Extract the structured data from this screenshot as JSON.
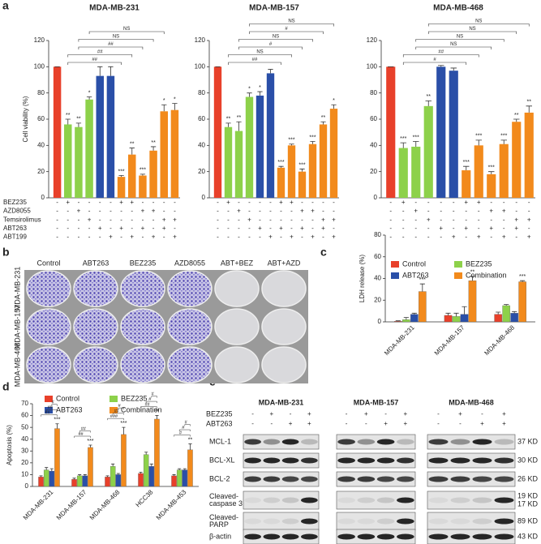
{
  "panel_labels": [
    "a",
    "b",
    "c",
    "d",
    "e"
  ],
  "treatments": {
    "rows": [
      "BEZ235",
      "AZD8055",
      "Temsirolimus",
      "ABT263",
      "ABT199"
    ],
    "signs": [
      [
        "-",
        "+",
        "-",
        "-",
        "-",
        "-",
        "+",
        "+",
        "-",
        "-",
        "-",
        "-"
      ],
      [
        "-",
        "-",
        "+",
        "-",
        "-",
        "-",
        "-",
        "-",
        "+",
        "+",
        "-",
        "-"
      ],
      [
        "-",
        "-",
        "-",
        "+",
        "-",
        "-",
        "-",
        "-",
        "-",
        "-",
        "+",
        "+"
      ],
      [
        "-",
        "-",
        "-",
        "-",
        "+",
        "-",
        "+",
        "-",
        "+",
        "-",
        "+",
        "-"
      ],
      [
        "-",
        "-",
        "-",
        "-",
        "-",
        "+",
        "-",
        "+",
        "-",
        "+",
        "-",
        "+"
      ]
    ]
  },
  "chart_data": [
    {
      "type": "bar",
      "title": "MDA-MB-231",
      "y_label": "Cell viability (%)",
      "values": [
        100,
        56,
        54,
        75,
        93,
        93,
        16,
        33,
        17,
        36,
        66,
        67
      ],
      "errors": [
        0,
        4,
        3,
        2,
        7,
        7,
        1,
        5,
        1,
        3,
        5,
        5
      ],
      "colors": [
        "#e8402a",
        "#8dd14a",
        "#8dd14a",
        "#8dd14a",
        "#2a4fa8",
        "#2a4fa8",
        "#f28a1c",
        "#f28a1c",
        "#f28a1c",
        "#f28a1c",
        "#f28a1c",
        "#f28a1c"
      ],
      "significance": [
        null,
        "**",
        "**",
        "*",
        null,
        null,
        "***",
        "**",
        "***",
        "**",
        "*",
        "*"
      ],
      "brackets": [
        "##",
        "##",
        "##",
        "NS",
        "NS"
      ],
      "ylim": [
        0,
        120
      ],
      "yticks": [
        0,
        20,
        40,
        60,
        80,
        100,
        120
      ]
    },
    {
      "type": "bar",
      "title": "MDA-MB-157",
      "values": [
        100,
        54,
        51,
        77,
        78,
        95,
        23,
        40,
        20,
        41,
        56,
        68
      ],
      "errors": [
        0,
        3,
        7,
        3,
        3,
        3,
        1,
        1,
        2,
        2,
        2,
        3
      ],
      "colors": [
        "#e8402a",
        "#8dd14a",
        "#8dd14a",
        "#8dd14a",
        "#2a4fa8",
        "#2a4fa8",
        "#f28a1c",
        "#f28a1c",
        "#f28a1c",
        "#f28a1c",
        "#f28a1c",
        "#f28a1c"
      ],
      "significance": [
        null,
        "**",
        "**",
        "*",
        "*",
        null,
        "***",
        "***",
        "***",
        "***",
        "**",
        "*"
      ],
      "brackets": [
        "##",
        "NS",
        "#",
        "NS",
        "#",
        "NS"
      ],
      "ylim": [
        0,
        120
      ],
      "yticks": [
        0,
        20,
        40,
        60,
        80,
        100,
        120
      ]
    },
    {
      "type": "bar",
      "title": "MDA-MB-468",
      "values": [
        100,
        38,
        39,
        70,
        100,
        97,
        21,
        40,
        18,
        41,
        58,
        65
      ],
      "errors": [
        0,
        4,
        4,
        4,
        1,
        2,
        3,
        4,
        2,
        3,
        2,
        5
      ],
      "colors": [
        "#e8402a",
        "#8dd14a",
        "#8dd14a",
        "#8dd14a",
        "#2a4fa8",
        "#2a4fa8",
        "#f28a1c",
        "#f28a1c",
        "#f28a1c",
        "#f28a1c",
        "#f28a1c",
        "#f28a1c"
      ],
      "significance": [
        null,
        "***",
        "***",
        "**",
        null,
        null,
        "***",
        "***",
        "***",
        "***",
        "**",
        "**"
      ],
      "brackets": [
        "#",
        "##",
        "NS",
        "NS",
        "NS",
        "NS"
      ],
      "ylim": [
        0,
        120
      ],
      "yticks": [
        0,
        20,
        40,
        60,
        80,
        100,
        120
      ]
    },
    {
      "type": "bar",
      "y_label": "LDH release (%)",
      "categories": [
        "MDA-MB-231",
        "MDA-MB-157",
        "MDA-MB-468"
      ],
      "series": [
        {
          "name": "Control",
          "color": "#e8402a",
          "values": [
            0.5,
            6,
            7
          ],
          "errors": [
            0.5,
            2,
            2
          ]
        },
        {
          "name": "BEZ235",
          "color": "#8dd14a",
          "values": [
            2,
            5,
            15
          ],
          "errors": [
            2,
            3,
            1
          ]
        },
        {
          "name": "ABT263",
          "color": "#2a4fa8",
          "values": [
            7,
            7,
            8
          ],
          "errors": [
            1,
            7,
            1.5
          ]
        },
        {
          "name": "Combination",
          "color": "#f28a1c",
          "values": [
            28,
            38,
            37
          ],
          "errors": [
            7,
            4,
            1
          ]
        }
      ],
      "significance": [
        "***",
        "**",
        "***"
      ],
      "ylim": [
        0,
        80
      ],
      "yticks": [
        0,
        20,
        40,
        60,
        80
      ]
    },
    {
      "type": "bar",
      "y_label": "Apoptosis (%)",
      "categories": [
        "MDA-MB-231",
        "MDA-MB-157",
        "MDA-MB-468",
        "HCC38",
        "MDA-MB-453"
      ],
      "series": [
        {
          "name": "Control",
          "color": "#e8402a",
          "values": [
            8,
            6,
            8,
            11,
            9
          ],
          "errors": [
            1,
            1,
            1,
            1,
            1
          ]
        },
        {
          "name": "BEZ235",
          "color": "#8dd14a",
          "values": [
            14,
            9,
            17,
            27,
            14
          ],
          "errors": [
            2,
            1,
            2,
            2,
            1
          ]
        },
        {
          "name": "ABT263",
          "color": "#2a4fa8",
          "values": [
            13,
            9,
            10,
            17,
            14
          ],
          "errors": [
            2,
            1,
            1,
            2,
            1
          ]
        },
        {
          "name": "Combination",
          "color": "#f28a1c",
          "values": [
            49,
            33,
            44,
            57,
            31
          ],
          "errors": [
            4,
            2,
            6,
            3,
            5
          ]
        }
      ],
      "significance": [
        "***",
        "***",
        "***",
        "**",
        "**"
      ],
      "hashes": [
        [
          "##",
          "##",
          "#"
        ],
        [
          "##",
          "##"
        ],
        [
          "###",
          "##",
          "#"
        ],
        [
          "##",
          "#",
          "#"
        ],
        [
          "#",
          "#",
          "#"
        ]
      ],
      "ylim": [
        0,
        70
      ],
      "yticks": [
        0,
        10,
        20,
        30,
        40,
        50,
        60,
        70
      ]
    }
  ],
  "colony": {
    "conditions": [
      "Control",
      "ABT263",
      "BEZ235",
      "AZD8055",
      "ABT+BEZ",
      "ABT+AZD"
    ],
    "cell_lines": [
      "MDA-MB-231",
      "MDA-MB-157",
      "MDA-MB-468"
    ]
  },
  "blot": {
    "cell_lines": [
      "MDA-MB-231",
      "MDA-MB-157",
      "MDA-MB-468"
    ],
    "treatments": {
      "rows": [
        "BEZ235",
        "ABT263"
      ],
      "signs": [
        [
          "-",
          "+",
          "-",
          "+"
        ],
        [
          "-",
          "-",
          "+",
          "+"
        ]
      ]
    },
    "proteins": [
      [
        "MCL-1"
      ],
      [
        "BCL-XL"
      ],
      [
        "BCL-2"
      ],
      [
        "Cleaved-",
        "caspase 3"
      ],
      [
        "Cleaved-",
        "PARP"
      ],
      [
        "β-actin"
      ]
    ],
    "sizes": [
      [
        "37 KD"
      ],
      [
        "30 KD"
      ],
      [
        "26 KD"
      ],
      [
        "19 KD",
        "17 KD"
      ],
      [
        "89 KD"
      ],
      [
        "43 KD"
      ]
    ]
  }
}
